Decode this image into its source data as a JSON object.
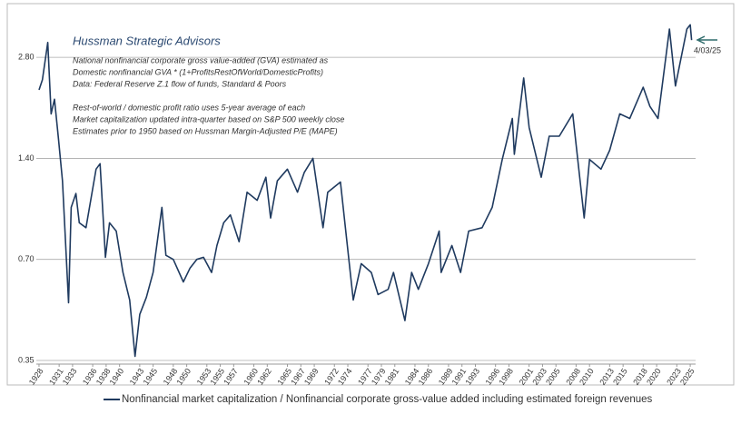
{
  "chart_data": {
    "type": "line",
    "title": "Hussman Strategic Advisors",
    "notes": [
      "National nonfinancial corporate gross value-added (GVA) estimated as",
      "Domestic nonfinancial GVA * (1+ProfitsRestOfWorld/DomesticProfits)",
      "Data: Federal Reserve Z.1 flow of funds, Standard & Poors",
      "Rest-of-world / domestic profit ratio uses 5-year average of each",
      "Market capitalization updated intra-quarter based on S&P 500 weekly close",
      "Estimates prior to 1950 based on Hussman Margin-Adjusted P/E (MAPE)"
    ],
    "annotation": "4/03/25",
    "log_scale": true,
    "grid": true,
    "ylim": [
      0.35,
      3.85
    ],
    "yticks": [
      0.35,
      {
        "value": 0.7,
        "label": "0.70"
      },
      {
        "value": 1.4,
        "label": "1.40"
      },
      {
        "value": 2.8,
        "label": "2.80"
      }
    ],
    "xlim": [
      1927.6,
      2025.8
    ],
    "xticks": [
      1928,
      1931,
      1933,
      1936,
      1938,
      1940,
      1943,
      1945,
      1948,
      1950,
      1953,
      1955,
      1957,
      1960,
      1962,
      1965,
      1967,
      1969,
      1972,
      1974,
      1977,
      1979,
      1981,
      1984,
      1986,
      1989,
      1991,
      1993,
      1996,
      1998,
      2001,
      2003,
      2005,
      2008,
      2010,
      2013,
      2015,
      2018,
      2020,
      2023,
      2025
    ],
    "series": [
      {
        "name": "Nonfinancial market capitalization / Nonfinancial corporate gross-value added including estimated foreign revenues",
        "color": "#1f3a5f",
        "x": [
          1928.0,
          1928.5,
          1929.3,
          1929.8,
          1930.3,
          1930.9,
          1931.5,
          1932.4,
          1932.8,
          1933.5,
          1934.0,
          1935.0,
          1936.5,
          1937.1,
          1937.9,
          1938.5,
          1939.5,
          1940.5,
          1941.5,
          1942.3,
          1943.0,
          1944.0,
          1945.0,
          1946.3,
          1946.9,
          1948.0,
          1949.5,
          1950.5,
          1951.5,
          1952.5,
          1953.7,
          1954.5,
          1955.5,
          1956.5,
          1957.8,
          1959.0,
          1960.5,
          1961.8,
          1962.5,
          1963.5,
          1965.0,
          1966.5,
          1967.5,
          1968.8,
          1970.3,
          1971.0,
          1972.9,
          1974.8,
          1976.0,
          1977.5,
          1978.5,
          1980.0,
          1980.8,
          1982.5,
          1983.5,
          1984.5,
          1986.0,
          1987.6,
          1987.9,
          1989.5,
          1990.8,
          1992.0,
          1994.0,
          1995.5,
          1997.0,
          1998.5,
          1998.8,
          2000.2,
          2001.0,
          2002.8,
          2004.0,
          2005.5,
          2007.5,
          2009.2,
          2010.0,
          2011.7,
          2013.0,
          2014.5,
          2016.0,
          2018.0,
          2019.0,
          2020.2,
          2021.9,
          2022.8,
          2024.5,
          2025.0,
          2025.2
        ],
        "values": [
          2.24,
          2.4,
          3.1,
          1.9,
          2.1,
          1.6,
          1.2,
          0.52,
          1.0,
          1.1,
          0.9,
          0.87,
          1.3,
          1.35,
          0.71,
          0.9,
          0.85,
          0.64,
          0.53,
          0.36,
          0.48,
          0.54,
          0.64,
          1.0,
          0.72,
          0.7,
          0.6,
          0.66,
          0.7,
          0.71,
          0.64,
          0.77,
          0.9,
          0.95,
          0.79,
          1.11,
          1.05,
          1.23,
          0.93,
          1.2,
          1.3,
          1.11,
          1.27,
          1.4,
          0.87,
          1.11,
          1.19,
          0.53,
          0.68,
          0.64,
          0.55,
          0.57,
          0.64,
          0.46,
          0.64,
          0.57,
          0.68,
          0.85,
          0.64,
          0.77,
          0.64,
          0.85,
          0.87,
          1.0,
          1.39,
          1.84,
          1.44,
          2.43,
          1.73,
          1.23,
          1.63,
          1.63,
          1.9,
          0.93,
          1.39,
          1.3,
          1.48,
          1.9,
          1.84,
          2.28,
          2.0,
          1.84,
          3.4,
          2.3,
          3.4,
          3.5,
          3.15
        ]
      }
    ]
  }
}
